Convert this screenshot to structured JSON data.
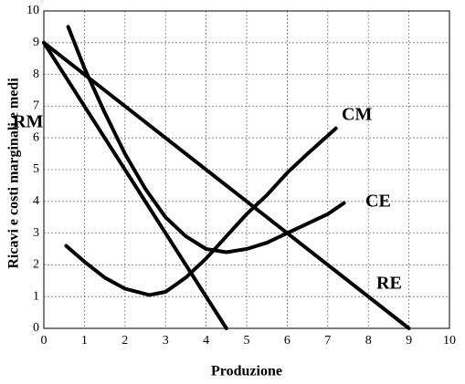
{
  "chart_data": {
    "type": "line",
    "x_label": "Produzione",
    "y_label": "Ricavi e costi marginali e medi",
    "xlim": [
      0,
      10
    ],
    "ylim": [
      0,
      10
    ],
    "xticks": [
      0,
      1,
      2,
      3,
      4,
      5,
      6,
      7,
      8,
      9,
      10
    ],
    "yticks": [
      0,
      1,
      2,
      3,
      4,
      5,
      6,
      7,
      8,
      9,
      10
    ],
    "grid": true,
    "series": [
      {
        "name": "RM",
        "color": "#000000",
        "x": [
          0,
          4.5
        ],
        "values": [
          9,
          0
        ]
      },
      {
        "name": "RE",
        "color": "#000000",
        "x": [
          0,
          9
        ],
        "values": [
          9,
          0
        ]
      },
      {
        "name": "CE",
        "color": "#000000",
        "x": [
          0.6,
          1,
          1.5,
          2,
          2.5,
          3,
          3.5,
          4,
          4.5,
          5,
          5.5,
          6,
          6.5,
          7,
          7.4
        ],
        "values": [
          9.5,
          8.2,
          6.8,
          5.5,
          4.4,
          3.5,
          2.9,
          2.5,
          2.4,
          2.5,
          2.7,
          3.0,
          3.3,
          3.6,
          3.95
        ]
      },
      {
        "name": "CM",
        "color": "#000000",
        "x": [
          0.55,
          1,
          1.5,
          2,
          2.6,
          3,
          3.5,
          4,
          4.5,
          5,
          5.5,
          6,
          6.5,
          7.2
        ],
        "values": [
          2.6,
          2.1,
          1.6,
          1.25,
          1.05,
          1.15,
          1.6,
          2.2,
          2.9,
          3.6,
          4.2,
          4.9,
          5.5,
          6.3
        ]
      }
    ]
  }
}
